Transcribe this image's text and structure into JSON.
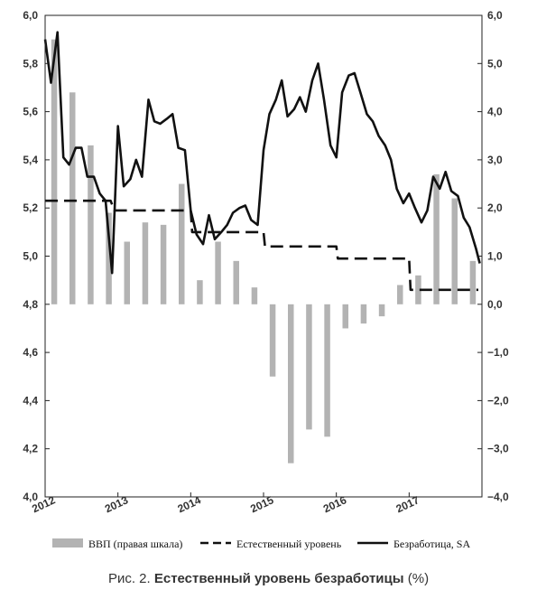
{
  "chart_data": {
    "type": "bar+line",
    "title": "",
    "left_axis": {
      "ylim": [
        4.0,
        6.0
      ],
      "ticks": [
        "4,0",
        "4,2",
        "4,4",
        "4,6",
        "4,8",
        "5,0",
        "5,2",
        "5,4",
        "5,6",
        "5,8",
        "6,0"
      ]
    },
    "right_axis": {
      "ylim": [
        -4.0,
        6.0
      ],
      "ticks": [
        "−4,0",
        "−3,0",
        "−2,0",
        "−1,0",
        "0,0",
        "1,0",
        "2,0",
        "3,0",
        "4,0",
        "5,0",
        "6,0"
      ]
    },
    "x_axis": {
      "xlim": [
        2012.0,
        2018.0
      ],
      "ticks": [
        "2012",
        "2013",
        "2014",
        "2015",
        "2016",
        "2017"
      ]
    },
    "series": [
      {
        "name": "ВВП (правая шкала)",
        "kind": "bar",
        "axis": "right",
        "color": "#b3b3b3",
        "x": [
          2012.125,
          2012.375,
          2012.625,
          2012.875,
          2013.125,
          2013.375,
          2013.625,
          2013.875,
          2014.125,
          2014.375,
          2014.625,
          2014.875,
          2015.125,
          2015.375,
          2015.625,
          2015.875,
          2016.125,
          2016.375,
          2016.625,
          2016.875,
          2017.125,
          2017.375,
          2017.625,
          2017.875
        ],
        "values": [
          5.5,
          4.4,
          3.3,
          1.9,
          1.3,
          1.7,
          1.65,
          2.5,
          0.5,
          1.3,
          0.9,
          0.35,
          -1.5,
          -3.3,
          -2.6,
          -2.75,
          -0.5,
          -0.4,
          -0.25,
          0.4,
          0.6,
          2.7,
          2.2,
          0.9
        ]
      },
      {
        "name": "Естественный уровень",
        "kind": "line",
        "style": "dashed",
        "axis": "left",
        "color": "#111111",
        "x": [
          2012.0,
          2012.9,
          2012.95,
          2014.0,
          2014.02,
          2015.0,
          2015.02,
          2016.0,
          2016.02,
          2017.0,
          2017.02,
          2017.95
        ],
        "values": [
          5.23,
          5.23,
          5.19,
          5.19,
          5.1,
          5.1,
          5.04,
          5.04,
          4.99,
          4.99,
          4.86,
          4.86
        ]
      },
      {
        "name": "Безработица, SA",
        "kind": "line",
        "style": "solid",
        "axis": "left",
        "color": "#111111",
        "x": [
          2012.0,
          2012.08,
          2012.17,
          2012.25,
          2012.33,
          2012.42,
          2012.5,
          2012.58,
          2012.67,
          2012.75,
          2012.83,
          2012.92,
          2013.0,
          2013.08,
          2013.17,
          2013.25,
          2013.33,
          2013.42,
          2013.5,
          2013.58,
          2013.67,
          2013.75,
          2013.83,
          2013.92,
          2014.0,
          2014.08,
          2014.17,
          2014.25,
          2014.33,
          2014.42,
          2014.5,
          2014.58,
          2014.67,
          2014.75,
          2014.83,
          2014.92,
          2015.0,
          2015.08,
          2015.17,
          2015.25,
          2015.33,
          2015.42,
          2015.5,
          2015.58,
          2015.67,
          2015.75,
          2015.83,
          2015.92,
          2016.0,
          2016.08,
          2016.17,
          2016.25,
          2016.33,
          2016.42,
          2016.5,
          2016.58,
          2016.67,
          2016.75,
          2016.83,
          2016.92,
          2017.0,
          2017.08,
          2017.17,
          2017.25,
          2017.33,
          2017.42,
          2017.5,
          2017.58,
          2017.67,
          2017.75,
          2017.83,
          2017.92,
          2017.97
        ],
        "values": [
          5.9,
          5.72,
          5.93,
          5.41,
          5.38,
          5.45,
          5.45,
          5.33,
          5.33,
          5.26,
          5.23,
          4.93,
          5.54,
          5.29,
          5.32,
          5.4,
          5.33,
          5.65,
          5.56,
          5.55,
          5.57,
          5.59,
          5.45,
          5.44,
          5.19,
          5.09,
          5.05,
          5.17,
          5.07,
          5.1,
          5.13,
          5.18,
          5.2,
          5.21,
          5.15,
          5.13,
          5.44,
          5.59,
          5.65,
          5.73,
          5.58,
          5.61,
          5.66,
          5.6,
          5.73,
          5.8,
          5.65,
          5.46,
          5.41,
          5.68,
          5.75,
          5.76,
          5.68,
          5.59,
          5.56,
          5.5,
          5.46,
          5.4,
          5.28,
          5.22,
          5.26,
          5.2,
          5.14,
          5.19,
          5.33,
          5.28,
          5.35,
          5.27,
          5.25,
          5.16,
          5.12,
          5.03,
          4.97
        ]
      }
    ],
    "legend": {
      "position": "bottom",
      "items": [
        {
          "label": "ВВП (правая шкала)",
          "kind": "bar"
        },
        {
          "label": "Естественный уровень",
          "kind": "dashed"
        },
        {
          "label": "Безработица, SA",
          "kind": "solid"
        }
      ]
    },
    "grid": false
  },
  "caption": {
    "prefix": "Рис. 2.",
    "title": "Естественный уровень безработицы",
    "suffix": "(%)"
  }
}
